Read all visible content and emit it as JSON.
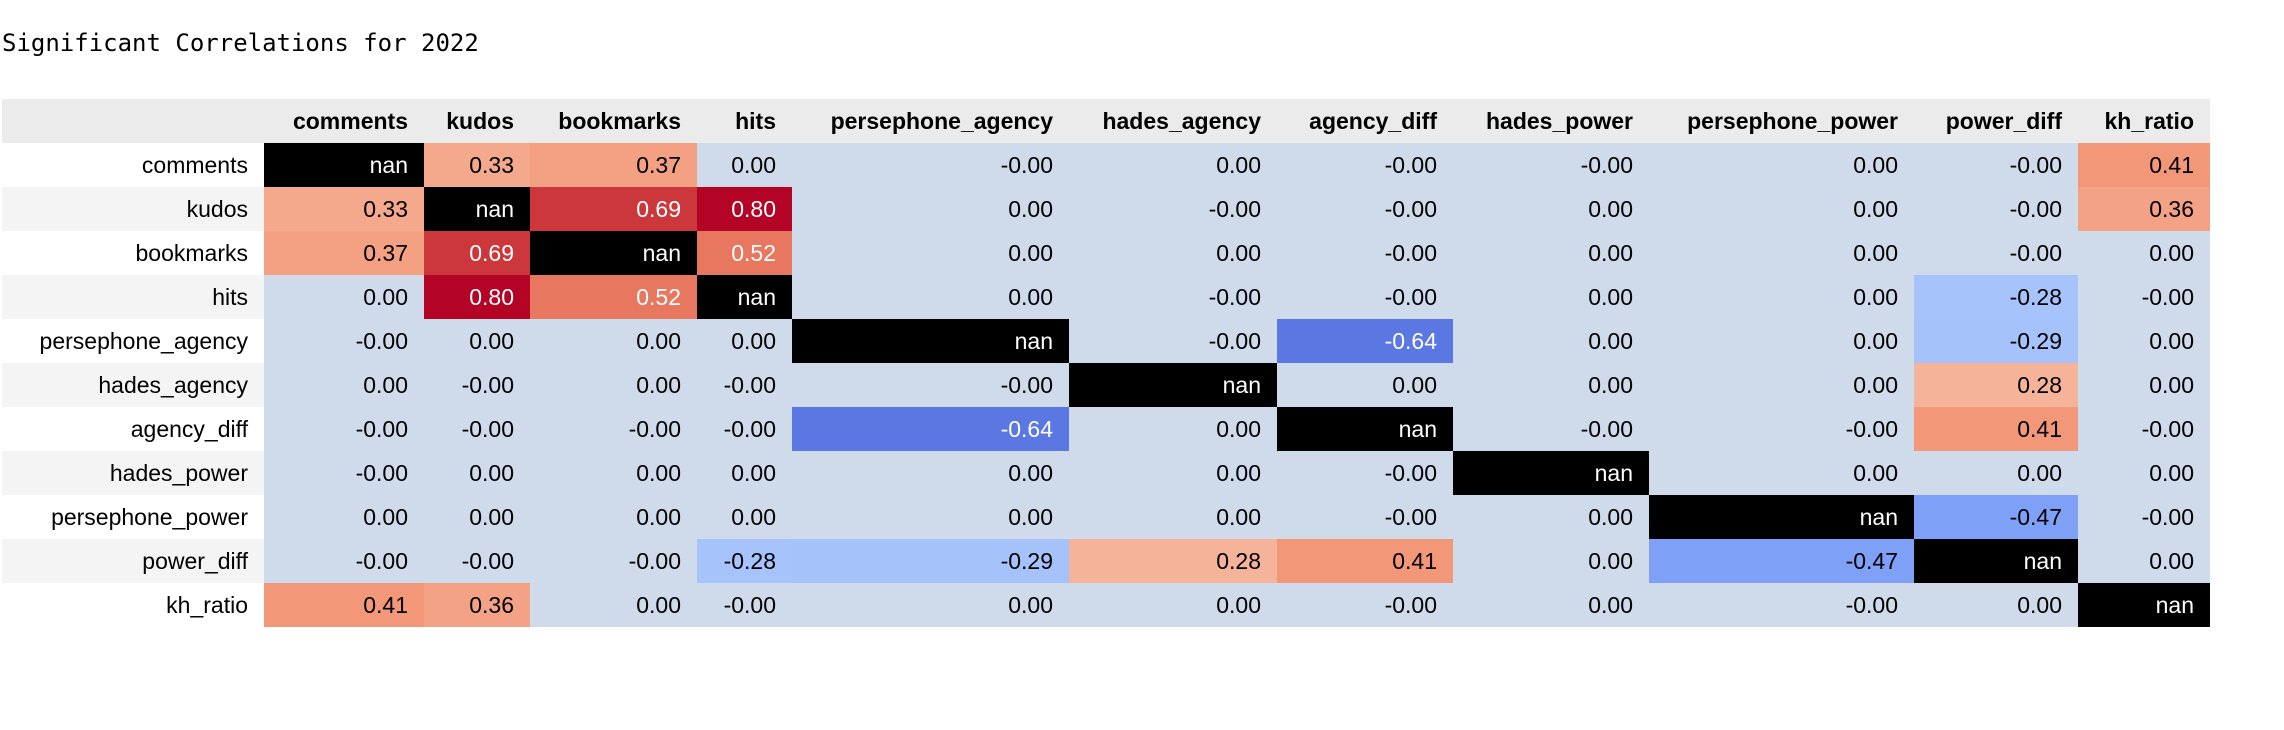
{
  "title": "Significant Correlations for 2022",
  "chart_data": {
    "type": "heatmap",
    "title": "Significant Correlations for 2022",
    "colormap": "coolwarm",
    "vmin": -0.8,
    "vmax": 0.8,
    "nan_color": "#000000",
    "columns": [
      "comments",
      "kudos",
      "bookmarks",
      "hits",
      "persephone_agency",
      "hades_agency",
      "agency_diff",
      "hades_power",
      "persephone_power",
      "power_diff",
      "kh_ratio"
    ],
    "rows": [
      "comments",
      "kudos",
      "bookmarks",
      "hits",
      "persephone_agency",
      "hades_agency",
      "agency_diff",
      "hades_power",
      "persephone_power",
      "power_diff",
      "kh_ratio"
    ],
    "cells": [
      [
        "nan",
        "0.33",
        "0.37",
        "0.00",
        "-0.00",
        "0.00",
        "-0.00",
        "-0.00",
        "0.00",
        "-0.00",
        "0.41"
      ],
      [
        "0.33",
        "nan",
        "0.69",
        "0.80",
        "0.00",
        "-0.00",
        "-0.00",
        "0.00",
        "0.00",
        "-0.00",
        "0.36"
      ],
      [
        "0.37",
        "0.69",
        "nan",
        "0.52",
        "0.00",
        "0.00",
        "-0.00",
        "0.00",
        "0.00",
        "-0.00",
        "0.00"
      ],
      [
        "0.00",
        "0.80",
        "0.52",
        "nan",
        "0.00",
        "-0.00",
        "-0.00",
        "0.00",
        "0.00",
        "-0.28",
        "-0.00"
      ],
      [
        "-0.00",
        "0.00",
        "0.00",
        "0.00",
        "nan",
        "-0.00",
        "-0.64",
        "0.00",
        "0.00",
        "-0.29",
        "0.00"
      ],
      [
        "0.00",
        "-0.00",
        "0.00",
        "-0.00",
        "-0.00",
        "nan",
        "0.00",
        "0.00",
        "0.00",
        "0.28",
        "0.00"
      ],
      [
        "-0.00",
        "-0.00",
        "-0.00",
        "-0.00",
        "-0.64",
        "0.00",
        "nan",
        "-0.00",
        "-0.00",
        "0.41",
        "-0.00"
      ],
      [
        "-0.00",
        "0.00",
        "0.00",
        "0.00",
        "0.00",
        "0.00",
        "-0.00",
        "nan",
        "0.00",
        "0.00",
        "0.00"
      ],
      [
        "0.00",
        "0.00",
        "0.00",
        "0.00",
        "0.00",
        "0.00",
        "-0.00",
        "0.00",
        "nan",
        "-0.47",
        "-0.00"
      ],
      [
        "-0.00",
        "-0.00",
        "-0.00",
        "-0.28",
        "-0.29",
        "0.28",
        "0.41",
        "0.00",
        "-0.47",
        "nan",
        "0.00"
      ],
      [
        "0.41",
        "0.36",
        "0.00",
        "-0.00",
        "0.00",
        "0.00",
        "-0.00",
        "0.00",
        "-0.00",
        "0.00",
        "nan"
      ]
    ]
  }
}
